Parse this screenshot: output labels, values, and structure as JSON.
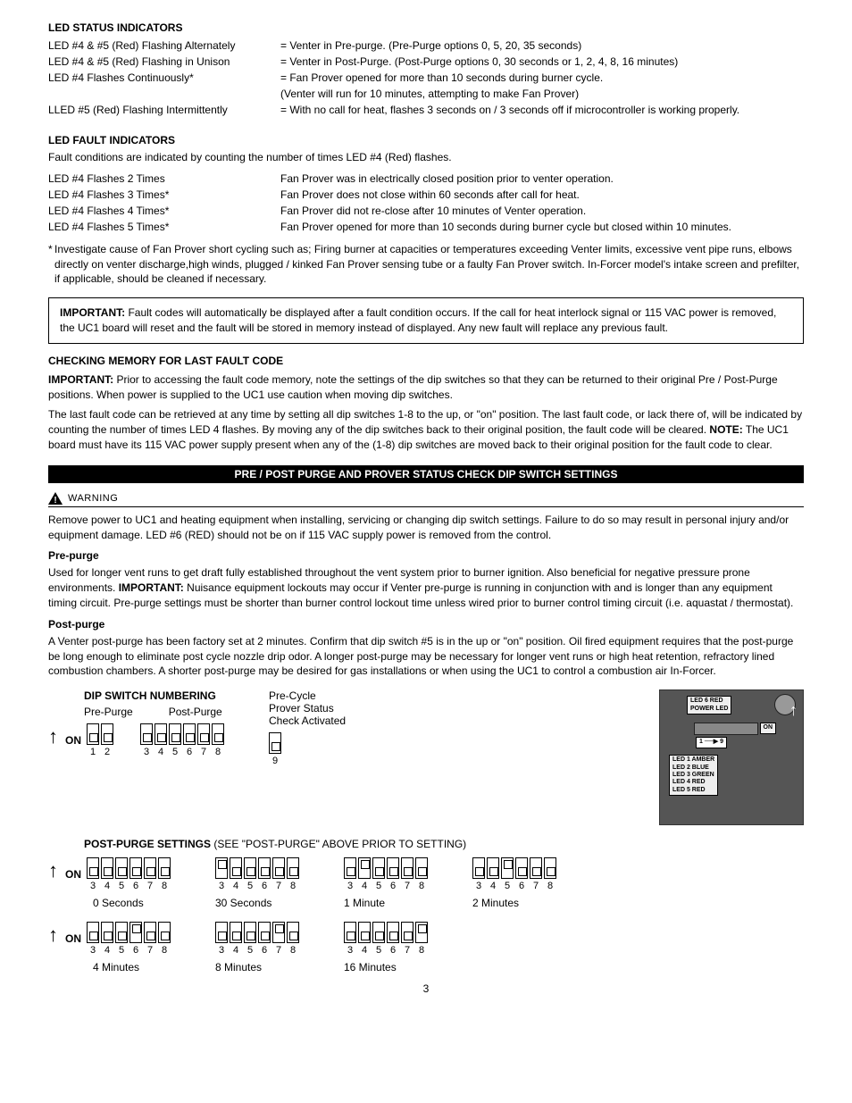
{
  "ledStatus": {
    "heading": "LED STATUS INDICATORS",
    "rows": [
      {
        "c1": "LED #4 & #5 (Red) Flashing Alternately",
        "c2": "=  Venter in Pre-purge. (Pre-Purge options 0, 5, 20, 35 seconds)"
      },
      {
        "c1": "LED #4 & #5 (Red) Flashing in Unison",
        "c2": "=  Venter in Post-Purge. (Post-Purge options 0, 30 seconds or 1, 2, 4, 8, 16 minutes)"
      },
      {
        "c1": "LED #4 Flashes Continuously*",
        "c2": "=  Fan Prover opened for more than 10 seconds during burner cycle.\n   (Venter will run for 10 minutes, attempting to make Fan Prover)"
      },
      {
        "c1": "LLED #5 (Red) Flashing Intermittently",
        "c2": "=  With no call for heat, flashes 3 seconds on / 3 seconds off if microcontroller is working properly."
      }
    ]
  },
  "ledFault": {
    "heading": "LED FAULT INDICATORS",
    "intro": "Fault conditions are indicated by counting the number of times LED #4 (Red) flashes.",
    "rows": [
      {
        "c1": "LED #4 Flashes 2 Times",
        "c2": "Fan Prover was in electrically closed position prior to venter operation."
      },
      {
        "c1": "LED #4 Flashes 3 Times*",
        "c2": "Fan Prover does not close within 60 seconds after call for heat."
      },
      {
        "c1": "LED #4 Flashes 4 Times*",
        "c2": "Fan Prover did not re-close after 10 minutes of Venter operation."
      },
      {
        "c1": "LED #4 Flashes 5 Times*",
        "c2": "Fan Prover opened for more than 10 seconds during burner cycle but closed within 10 minutes."
      }
    ],
    "asteriskNote": "Investigate cause of Fan Prover short cycling such as; Firing burner at capacities or temperatures exceeding Venter limits, excessive vent pipe runs, elbows directly on venter discharge,high winds, plugged / kinked Fan Prover sensing tube or a faulty Fan Prover switch.  In-Forcer model's intake screen and prefilter, if applicable, should be cleaned if necessary."
  },
  "importantBox": {
    "label": "IMPORTANT:",
    "text": "Fault codes will automatically be displayed after a fault condition occurs.  If the call for heat interlock signal or 115 VAC power is removed, the UC1 board will reset and the fault will be stored in memory instead of displayed.  Any new fault will replace any previous fault."
  },
  "memory": {
    "heading": "CHECKING MEMORY FOR LAST FAULT CODE",
    "importantLabel": "IMPORTANT:",
    "important": "Prior to accessing the fault code memory, note the settings of the dip switches so that they can be returned to their original Pre / Post-Purge positions.  When power is supplied to the UC1 use caution when moving dip switches.",
    "para2a": "The last fault code can be retrieved at any time by setting all dip switches 1-8 to the up, or \"on\" position.  The last fault code, or lack there of, will be indicated by counting the number of times LED 4 flashes.  By moving any of the dip switches back to their original position, the fault code will be cleared.  ",
    "noteLabel": "NOTE:",
    "para2b": " The UC1 board must have its 115 VAC power supply present when any of the (1-8) dip switches are moved back to their original position for the fault code to clear."
  },
  "blackBar": "PRE / POST PURGE AND PROVER STATUS CHECK DIP SWITCH SETTINGS",
  "warning": {
    "label": "WARNING",
    "text": "Remove power to UC1 and heating equipment when installing, servicing or changing dip switch settings. Failure to do so may result in personal injury and/or equipment damage.  LED #6 (RED) should not be on if 115 VAC supply power is removed from the control."
  },
  "prepurge": {
    "heading": "Pre-purge",
    "textA": "Used for longer vent runs to get draft fully established throughout the vent system prior to burner ignition.  Also beneficial for negative pressure prone environments. ",
    "importantLabel": "IMPORTANT:",
    "textB": " Nuisance equipment lockouts may occur if Venter pre-purge is running in conjunction with and is longer than any equipment timing circuit.  Pre-purge settings must be shorter than burner control lockout time unless wired prior to burner control timing circuit (i.e. aquastat / thermostat)."
  },
  "postpurge": {
    "heading": "Post-purge",
    "text": "A Venter post-purge has been factory set at 2 minutes.  Confirm that dip switch #5 is in the up or \"on\" position.  Oil fired equipment requires that the post-purge be long enough to eliminate post cycle nozzle drip odor. A longer post-purge may be necessary for longer vent runs or high heat retention, refractory lined combustion chambers. A shorter post-purge may be desired for gas installations or when using the UC1 to control a combustion air In-Forcer."
  },
  "dipNumbering": {
    "title": "DIP SWITCH NUMBERING",
    "prepurgeLabel": "Pre-Purge",
    "postpurgeLabel": "Post-Purge",
    "precycleLine1": "Pre-Cycle",
    "precycleLine2": "Prover Status",
    "precycleLine3": "Check Activated",
    "on": "ON",
    "prepurgeNums": [
      "1",
      "2"
    ],
    "postpurgeNums": [
      "3",
      "4",
      "5",
      "6",
      "7",
      "8"
    ],
    "precycleNum": "9"
  },
  "postpurgeSettings": {
    "titleA": "POST-PURGE SETTINGS",
    "titleB": "  (SEE \"POST-PURGE\" ABOVE PRIOR TO SETTING)",
    "on": "ON",
    "nums": [
      "3",
      "4",
      "5",
      "6",
      "7",
      "8"
    ],
    "configs": [
      {
        "positions": [
          "down",
          "down",
          "down",
          "down",
          "down",
          "down"
        ],
        "caption": "0 Seconds"
      },
      {
        "positions": [
          "up",
          "down",
          "down",
          "down",
          "down",
          "down"
        ],
        "caption": "30 Seconds"
      },
      {
        "positions": [
          "down",
          "up",
          "down",
          "down",
          "down",
          "down"
        ],
        "caption": "1 Minute"
      },
      {
        "positions": [
          "down",
          "down",
          "up",
          "down",
          "down",
          "down"
        ],
        "caption": "2 Minutes"
      },
      {
        "positions": [
          "down",
          "down",
          "down",
          "up",
          "down",
          "down"
        ],
        "caption": "4 Minutes"
      },
      {
        "positions": [
          "down",
          "down",
          "down",
          "down",
          "up",
          "down"
        ],
        "caption": "8 Minutes"
      },
      {
        "positions": [
          "down",
          "down",
          "down",
          "down",
          "down",
          "up"
        ],
        "caption": "16 Minutes"
      }
    ]
  },
  "photo": {
    "led6": "LED 6 RED\nPOWER LED",
    "onLabel": "ON",
    "range": "1 ──▶ 9",
    "ledList": "LED 1 AMBER\nLED 2 BLUE\nLED 3 GREEN\nLED 4 RED\nLED 5 RED"
  },
  "pageNum": "3"
}
